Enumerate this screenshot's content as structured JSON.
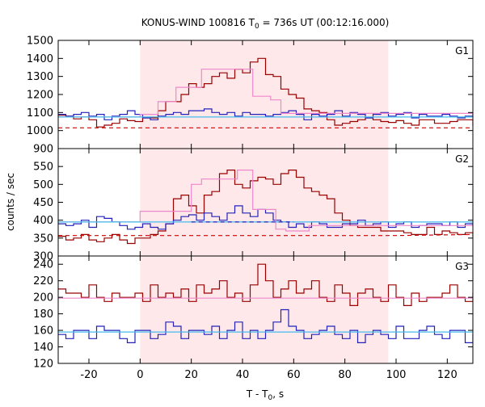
{
  "title_main": "KONUS-WIND 100816 T",
  "title_sub": "0",
  "title_rest": " = 736s UT (00:12:16.000)",
  "xlabel_main": "T - T",
  "xlabel_sub": "0",
  "xlabel_rest": ", s",
  "ylabel": "counts / sec",
  "chart_data": {
    "type": "line",
    "step": true,
    "xlim": [
      -32,
      130
    ],
    "xticks": [
      -20,
      0,
      20,
      40,
      60,
      80,
      100,
      120
    ],
    "highlight": {
      "x0": 0,
      "x1": 97,
      "color": "#ffe8ea"
    },
    "bin_width": 3,
    "x_start": -32,
    "colors": {
      "dark_red": "#990000",
      "blue": "#2222bb",
      "pink": "#ee88cc",
      "cyan": "#44bbee",
      "dashed_red": "#cc0000",
      "dashed_blue": "#2222bb"
    },
    "panels": [
      {
        "label": "G1",
        "ylim": [
          900,
          1500
        ],
        "yticks": [
          900,
          1000,
          1100,
          1200,
          1300,
          1400,
          1500
        ],
        "series": [
          {
            "values": [
              1085,
              1080,
              1065,
              1075,
              1060,
              1020,
              1030,
              1040,
              1065,
              1055,
              1050,
              1070,
              1070,
              1110,
              1160,
              1160,
              1200,
              1260,
              1240,
              1260,
              1300,
              1320,
              1290,
              1340,
              1320,
              1380,
              1400,
              1310,
              1300,
              1230,
              1200,
              1180,
              1120,
              1110,
              1100,
              1060,
              1030,
              1040,
              1050,
              1060,
              1070,
              1060,
              1050,
              1045,
              1055,
              1040,
              1030,
              1060,
              1060,
              1040,
              1040,
              1050,
              1060,
              1060,
              1030,
              1030,
              1010,
              1020,
              1030,
              1020,
              1000,
              1010,
              1020,
              1020,
              1030,
              1030,
              1010,
              1000,
              1010,
              1000
            ]
          },
          {
            "values": [
              1090,
              1080,
              1090,
              1100,
              1080,
              1090,
              1060,
              1080,
              1090,
              1110,
              1090,
              1070,
              1060,
              1080,
              1090,
              1100,
              1090,
              1110,
              1110,
              1120,
              1100,
              1090,
              1100,
              1080,
              1100,
              1090,
              1090,
              1080,
              1090,
              1100,
              1110,
              1090,
              1060,
              1090,
              1080,
              1090,
              1110,
              1080,
              1100,
              1090,
              1070,
              1090,
              1100,
              1080,
              1090,
              1100,
              1070,
              1090,
              1080,
              1080,
              1090,
              1080,
              1070,
              1080,
              1090,
              1080,
              1090,
              1070,
              1080,
              1080,
              1100,
              1080,
              1090,
              1110,
              1140,
              1100,
              1110,
              1090,
              1080,
              1110
            ]
          },
          {
            "points": [
              [
                -32,
                1075
              ],
              [
                0,
                1075
              ],
              [
                0,
                1090
              ],
              [
                7,
                1090
              ],
              [
                7,
                1160
              ],
              [
                14,
                1160
              ],
              [
                14,
                1240
              ],
              [
                24,
                1240
              ],
              [
                24,
                1340
              ],
              [
                44,
                1340
              ],
              [
                44,
                1190
              ],
              [
                51,
                1190
              ],
              [
                51,
                1170
              ],
              [
                55,
                1170
              ],
              [
                55,
                1095
              ],
              [
                130,
                1095
              ]
            ]
          },
          {
            "points": [
              [
                -32,
                1075
              ],
              [
                130,
                1075
              ]
            ]
          },
          {
            "dashed": true,
            "points": [
              [
                -32,
                1015
              ],
              [
                130,
                1015
              ]
            ]
          }
        ]
      },
      {
        "label": "G2",
        "ylim": [
          300,
          600
        ],
        "yticks": [
          300,
          350,
          400,
          450,
          500,
          550
        ],
        "series": [
          {
            "values": [
              355,
              345,
              350,
              360,
              345,
              340,
              350,
              360,
              345,
              335,
              350,
              350,
              360,
              370,
              390,
              460,
              470,
              440,
              420,
              470,
              480,
              530,
              540,
              500,
              490,
              510,
              520,
              515,
              500,
              530,
              540,
              520,
              490,
              480,
              470,
              460,
              420,
              400,
              385,
              380,
              380,
              380,
              370,
              370,
              370,
              365,
              360,
              360,
              380,
              360,
              370,
              365,
              360,
              365,
              355,
              370,
              365,
              360,
              360,
              360,
              345,
              355,
              350,
              350,
              345,
              350,
              350,
              360,
              360,
              355
            ]
          },
          {
            "values": [
              390,
              385,
              390,
              400,
              380,
              410,
              405,
              395,
              385,
              375,
              380,
              390,
              380,
              375,
              390,
              400,
              410,
              415,
              400,
              420,
              410,
              400,
              420,
              440,
              420,
              410,
              430,
              420,
              400,
              395,
              380,
              390,
              380,
              395,
              390,
              380,
              380,
              390,
              390,
              400,
              385,
              390,
              395,
              380,
              390,
              395,
              380,
              385,
              390,
              390,
              385,
              395,
              380,
              390,
              385,
              395,
              390,
              400,
              380,
              390,
              395,
              380,
              380,
              395,
              390,
              380,
              390,
              380,
              395,
              390
            ]
          },
          {
            "points": [
              [
                -32,
                395
              ],
              [
                0,
                395
              ],
              [
                0,
                425
              ],
              [
                20,
                425
              ],
              [
                20,
                500
              ],
              [
                24,
                500
              ],
              [
                24,
                515
              ],
              [
                38,
                515
              ],
              [
                38,
                540
              ],
              [
                44,
                540
              ],
              [
                44,
                430
              ],
              [
                53,
                430
              ],
              [
                53,
                375
              ],
              [
                57,
                375
              ],
              [
                57,
                370
              ],
              [
                66,
                370
              ],
              [
                66,
                385
              ],
              [
                130,
                385
              ]
            ]
          },
          {
            "points": [
              [
                -32,
                395
              ],
              [
                130,
                395
              ]
            ]
          },
          {
            "dashed": true,
            "points": [
              [
                -32,
                357
              ],
              [
                100,
                357
              ],
              [
                130,
                360
              ]
            ]
          },
          {
            "dashed": true,
            "points": [
              [
                20,
                395
              ],
              [
                60,
                395
              ]
            ]
          }
        ]
      },
      {
        "label": "G3",
        "ylim": [
          120,
          250
        ],
        "yticks": [
          120,
          140,
          160,
          180,
          200,
          220,
          240
        ],
        "series": [
          {
            "values": [
              210,
              205,
              205,
              200,
              215,
              200,
              195,
              205,
              200,
              200,
              205,
              195,
              215,
              200,
              205,
              200,
              210,
              195,
              215,
              205,
              210,
              220,
              200,
              205,
              195,
              215,
              240,
              220,
              200,
              210,
              220,
              205,
              210,
              220,
              200,
              195,
              215,
              205,
              190,
              205,
              210,
              200,
              195,
              215,
              200,
              190,
              205,
              195,
              200,
              200,
              205,
              215,
              200,
              195,
              205,
              200,
              210,
              200,
              195,
              205,
              220,
              205,
              195,
              205,
              200,
              195,
              210,
              215,
              195,
              200
            ]
          },
          {
            "values": [
              155,
              150,
              160,
              160,
              150,
              165,
              160,
              160,
              150,
              145,
              160,
              160,
              150,
              155,
              170,
              165,
              150,
              160,
              160,
              155,
              165,
              150,
              160,
              170,
              150,
              160,
              150,
              160,
              170,
              185,
              165,
              160,
              150,
              155,
              160,
              165,
              155,
              150,
              160,
              145,
              155,
              160,
              155,
              150,
              165,
              150,
              150,
              160,
              165,
              155,
              150,
              160,
              160,
              145,
              155,
              160,
              150,
              150,
              165,
              155,
              150,
              160,
              150,
              155,
              150,
              160,
              155,
              145,
              160,
              155
            ]
          },
          {
            "points": [
              [
                -32,
                199
              ],
              [
                130,
                199
              ]
            ]
          },
          {
            "points": [
              [
                -32,
                158
              ],
              [
                130,
                158
              ]
            ]
          }
        ]
      }
    ]
  }
}
